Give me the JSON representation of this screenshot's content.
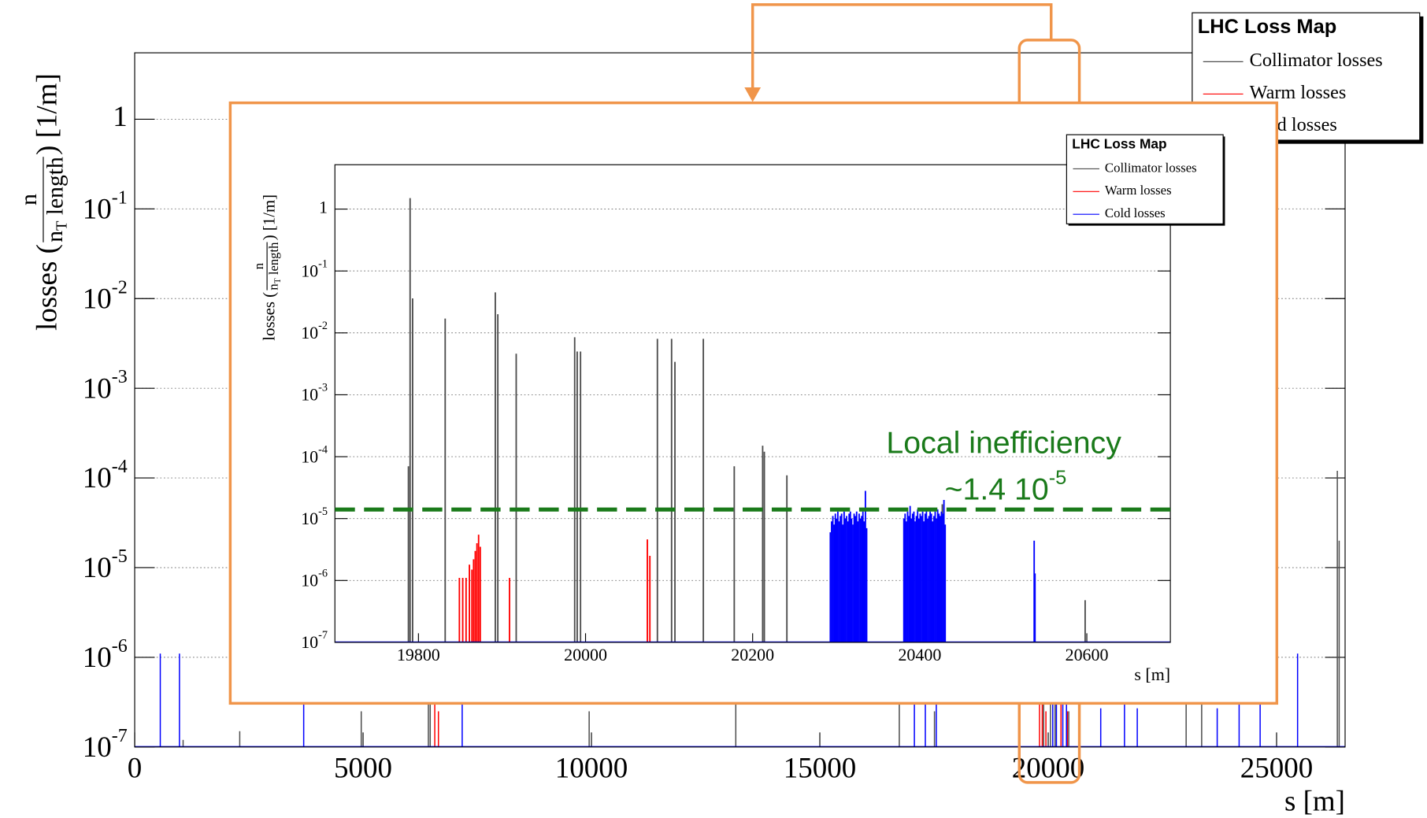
{
  "chart_data": [
    {
      "type": "bar",
      "log": true,
      "grid": true,
      "xlabel": "s [m]",
      "ylabel": {
        "prefix": "losses (",
        "numerator": "n",
        "denominator": "n",
        "subscript": "T",
        "denominator_rest": " length",
        "suffix": ") [1/m]"
      },
      "legend_title": "LHC Loss Map",
      "legend": "top-right",
      "xlim": [
        0,
        26500
      ],
      "xticks": [
        0,
        5000,
        10000,
        15000,
        20000,
        25000
      ],
      "ylim": [
        1e-07,
        5.5
      ],
      "yticks": [
        {
          "value": 1e-07,
          "label": "10",
          "exponent": "-7"
        },
        {
          "value": 1e-06,
          "label": "10",
          "exponent": "-6"
        },
        {
          "value": 1e-05,
          "label": "10",
          "exponent": "-5"
        },
        {
          "value": 0.0001,
          "label": "10",
          "exponent": "-4"
        },
        {
          "value": 0.001,
          "label": "10",
          "exponent": "-3"
        },
        {
          "value": 0.01,
          "label": "10",
          "exponent": "-2"
        },
        {
          "value": 0.1,
          "label": "10",
          "exponent": "-1"
        },
        1
      ],
      "series": [
        {
          "name": "Collimator losses",
          "color": "#4d4d4d",
          "x": [
            1060,
            2300,
            4960,
            6430,
            6470,
            9950,
            13160,
            16740,
            17510,
            19900,
            20050,
            20150,
            20450,
            23020,
            23360,
            26330,
            26370
          ],
          "values": [
            1.2e-07,
            1.5e-07,
            2.5e-07,
            4e-07,
            3e-07,
            2.5e-07,
            5e-07,
            3e-07,
            2.5e-07,
            4e-07,
            5e-07,
            3e-07,
            2.5e-07,
            4e-07,
            3e-07,
            0.00012,
            2e-05
          ]
        },
        {
          "name": "Warm losses",
          "color": "#ff0000",
          "x": [
            6570,
            6650,
            19810,
            19870,
            19950,
            20280,
            20420
          ],
          "values": [
            3.7e-07,
            2.5e-07,
            4e-07,
            3e-07,
            2.5e-07,
            3.5e-07,
            2.5e-07
          ]
        },
        {
          "name": "Cold losses",
          "color": "#0000ff",
          "x": [
            560,
            980,
            3700,
            7170,
            17070,
            17310,
            17550,
            20100,
            20180,
            20320,
            20400,
            21150,
            21670,
            21950,
            23700,
            24180,
            24640,
            25460
          ],
          "values": [
            1.1e-06,
            1.1e-06,
            6e-07,
            3e-07,
            1.05e-06,
            8e-07,
            4e-07,
            4e-07,
            5e-07,
            3e-07,
            3.5e-07,
            2.7e-07,
            4.5e-07,
            2.7e-07,
            2.7e-07,
            3.3e-07,
            3.2e-07,
            1.1e-06
          ]
        }
      ]
    },
    {
      "type": "bar",
      "log": true,
      "grid": true,
      "xlabel": "s [m]",
      "ylabel": {
        "prefix": "losses (",
        "numerator": "n",
        "denominator": "n",
        "subscript": "T",
        "denominator_rest": " length",
        "suffix": ") [1/m]"
      },
      "legend_title": "LHC Loss Map",
      "legend": "top-right",
      "xlim": [
        19700,
        20700
      ],
      "xticks": [
        19800,
        20000,
        20200,
        20400,
        20600
      ],
      "ylim": [
        1e-07,
        5.2
      ],
      "yticks": [
        {
          "value": 1e-07,
          "label": "10",
          "exponent": "-7"
        },
        {
          "value": 1e-06,
          "label": "10",
          "exponent": "-6"
        },
        {
          "value": 1e-05,
          "label": "10",
          "exponent": "-5"
        },
        {
          "value": 0.0001,
          "label": "10",
          "exponent": "-4"
        },
        {
          "value": 0.001,
          "label": "10",
          "exponent": "-3"
        },
        {
          "value": 0.01,
          "label": "10",
          "exponent": "-2"
        },
        {
          "value": 0.1,
          "label": "10",
          "exponent": "-1"
        },
        1
      ],
      "threshold": 1.4e-05,
      "threshold_color": "#1a7a1a",
      "annotation": {
        "text": "Local inefficiency",
        "value_text": "~1.4 10",
        "value_exponent": "-5"
      },
      "series": [
        {
          "name": "Collimator losses",
          "color": "#4d4d4d",
          "x": [
            19790,
            19793,
            19788,
            19832,
            19892,
            19895,
            19917,
            19987,
            19990,
            19994,
            20086,
            20103,
            20107,
            20141,
            20178,
            20212,
            20214,
            20241,
            20427,
            20598
          ],
          "values": [
            1.5,
            0.036,
            7e-05,
            0.017,
            0.045,
            0.02,
            0.0046,
            0.0085,
            0.005,
            0.005,
            0.008,
            0.008,
            0.0034,
            0.008,
            7e-05,
            0.00015,
            0.00012,
            5e-05,
            1.7e-05,
            4.8e-07
          ]
        },
        {
          "name": "Warm losses",
          "color": "#ff0000",
          "x": [
            19849,
            19853,
            19857,
            19861,
            19864,
            19866,
            19868,
            19870,
            19872,
            19874,
            19909,
            20074,
            20077
          ],
          "values": [
            1.1e-06,
            1.1e-06,
            1.1e-06,
            1.8e-06,
            1.5e-06,
            2.2e-06,
            3e-06,
            4e-06,
            5.5e-06,
            3.5e-06,
            1.1e-06,
            4.6e-06,
            2.5e-06
          ]
        },
        {
          "name": "Cold losses",
          "color": "#0000ff",
          "x": [
            20293,
            20294.5,
            20296,
            20297.5,
            20299,
            20300.5,
            20302,
            20303.5,
            20305,
            20306.5,
            20308,
            20309.5,
            20311,
            20312.5,
            20314,
            20315.5,
            20317,
            20318.5,
            20320,
            20321.5,
            20323,
            20324.5,
            20326,
            20327.5,
            20329,
            20330.5,
            20332,
            20333.5,
            20335,
            20336.5,
            20381,
            20382.5,
            20384,
            20385.5,
            20387,
            20388.5,
            20390,
            20391.5,
            20393,
            20394.5,
            20396,
            20397.5,
            20399,
            20400.5,
            20402,
            20403.5,
            20405,
            20406.5,
            20408,
            20409.5,
            20411,
            20412.5,
            20414,
            20415.5,
            20417,
            20418.5,
            20420,
            20421.5,
            20423,
            20424.5,
            20426,
            20427.5,
            20429,
            20430.5,
            20537,
            20538
          ],
          "values": [
            6e-06,
            9e-06,
            1.1e-05,
            8e-06,
            1.2e-05,
            1e-05,
            1.3e-05,
            9e-06,
            1.1e-05,
            1.2e-05,
            8e-06,
            1.3e-05,
            1e-05,
            1.1e-05,
            9e-06,
            1.2e-05,
            1.3e-05,
            1e-05,
            8e-06,
            1.2e-05,
            1.1e-05,
            1.3e-05,
            9e-06,
            1.2e-05,
            1e-05,
            1.1e-05,
            1.3e-05,
            9e-06,
            2.8e-05,
            7e-06,
            1e-05,
            1.2e-05,
            9e-06,
            1.3e-05,
            1.1e-05,
            1.6e-05,
            1e-05,
            1.2e-05,
            1.3e-05,
            9e-06,
            1.1e-05,
            1.4e-05,
            1e-05,
            1.2e-05,
            1.1e-05,
            1.3e-05,
            9e-06,
            1.2e-05,
            1.4e-05,
            1e-05,
            1.1e-05,
            1.3e-05,
            1.2e-05,
            9e-06,
            1.1e-05,
            1.3e-05,
            1e-05,
            1.4e-05,
            1.2e-05,
            1.1e-05,
            1.3e-05,
            1.2e-05,
            2e-05,
            8e-06,
            4.4e-06,
            1.3e-06
          ]
        }
      ]
    }
  ]
}
